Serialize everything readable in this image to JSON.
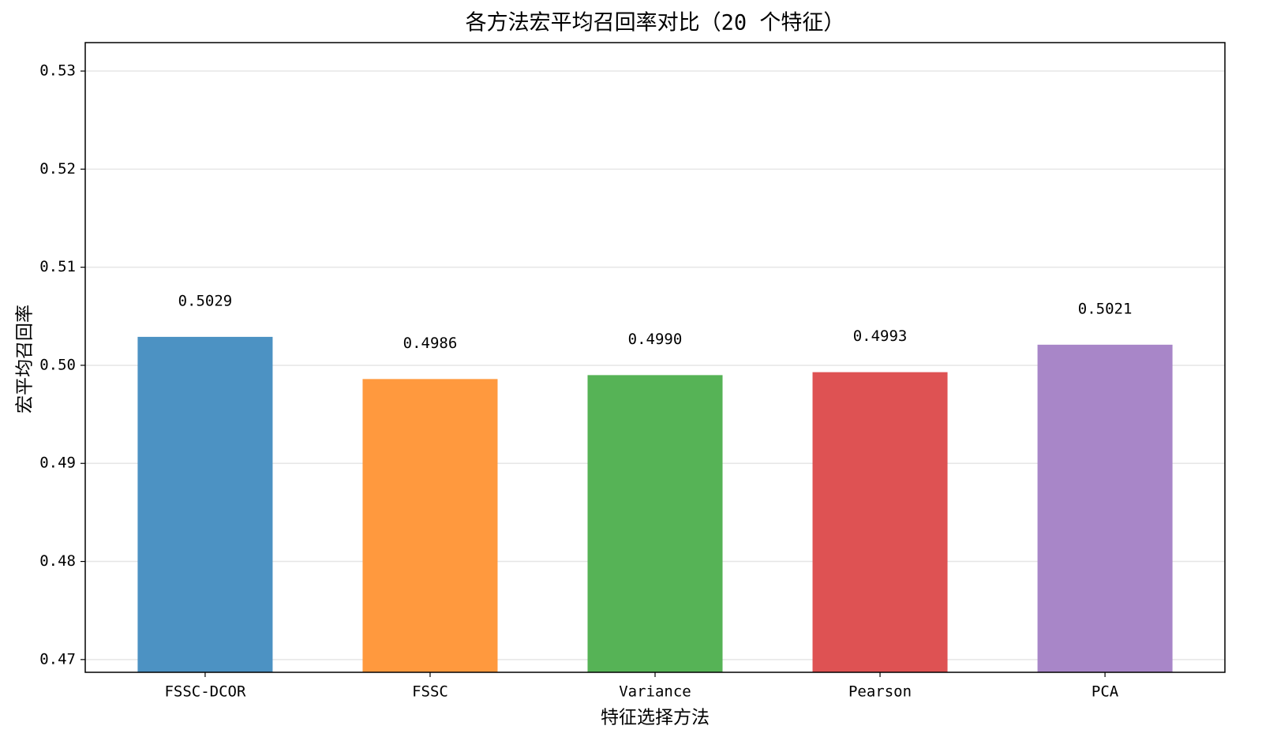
{
  "chart_data": {
    "type": "bar",
    "title": "各方法宏平均召回率对比（20 个特征）",
    "x_label": "特征选择方法",
    "y_label": "宏平均召回率",
    "categories": [
      "FSSC-DCOR",
      "FSSC",
      "Variance",
      "Pearson",
      "PCA"
    ],
    "values": [
      0.5029,
      0.4986,
      0.499,
      0.4993,
      0.5021
    ],
    "value_labels": [
      "0.5029",
      "0.4986",
      "0.4990",
      "0.4993",
      "0.5021"
    ],
    "colors": [
      "#4c92c3",
      "#ff993e",
      "#56b356",
      "#de5253",
      "#a886c8"
    ],
    "ylim": [
      0.4687,
      0.5329
    ],
    "yticks": [
      0.47,
      0.48,
      0.49,
      {
        "value": 0.5,
        "label": "0.50"
      },
      0.51,
      0.52,
      0.53
    ],
    "grid": true
  }
}
